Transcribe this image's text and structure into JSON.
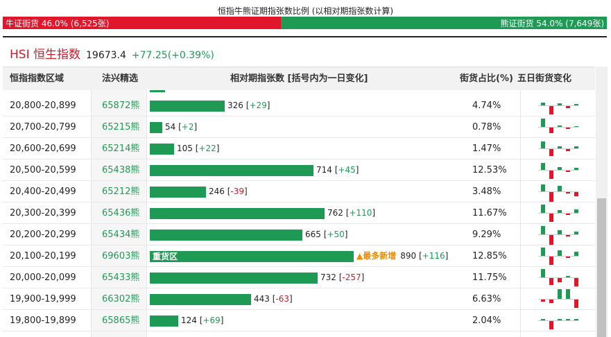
{
  "ratio": {
    "title": "恒指牛熊证期指张数比例 (以相对期指张数计算)",
    "bull_label": "牛证街货 46.0% (6,525张)",
    "bear_label": "熊证街货 54.0% (7,649张)",
    "bull_fraction": 0.46,
    "bull_color": "#e2162b",
    "bear_color": "#1f9a55"
  },
  "index": {
    "name": "HSI 恒生指数",
    "value": "19673.4",
    "change": "+77.25(+0.39%)"
  },
  "table": {
    "headers": {
      "range": "恒指指数区域",
      "warrant": "法兴精选",
      "distribution": "相对期指张数 [括号内为一日变化]",
      "pct": "街货占比(%)",
      "five_day": "五日街货变化"
    },
    "max_contracts": 890,
    "rows": [
      {
        "range": "20,800-20,899",
        "warrant": "65872熊",
        "contracts": 326,
        "count": "326",
        "change": "+29",
        "pct": "4.74%",
        "five": [
          4,
          -12,
          3,
          -3,
          2
        ]
      },
      {
        "range": "20,700-20,799",
        "warrant": "65215熊",
        "contracts": 54,
        "count": "54",
        "change": "+2",
        "pct": "0.78%",
        "five": [
          12,
          -8,
          2,
          -2,
          1
        ]
      },
      {
        "range": "20,600-20,699",
        "warrant": "65214熊",
        "contracts": 105,
        "count": "105",
        "change": "+22",
        "pct": "1.47%",
        "five": [
          10,
          -10,
          3,
          -3,
          3
        ]
      },
      {
        "range": "20,500-20,599",
        "warrant": "65438熊",
        "contracts": 714,
        "count": "714",
        "change": "+45",
        "pct": "12.53%",
        "five": [
          10,
          -12,
          4,
          -2,
          3
        ]
      },
      {
        "range": "20,400-20,499",
        "warrant": "65212熊",
        "contracts": 246,
        "count": "246",
        "change": "-39",
        "pct": "3.48%",
        "five": [
          10,
          -14,
          8,
          -2,
          -6
        ]
      },
      {
        "range": "20,300-20,399",
        "warrant": "65436熊",
        "contracts": 762,
        "count": "762",
        "change": "+110",
        "pct": "11.67%",
        "five": [
          12,
          -12,
          4,
          -2,
          5
        ]
      },
      {
        "range": "20,200-20,299",
        "warrant": "65434熊",
        "contracts": 665,
        "count": "665",
        "change": "+50",
        "pct": "9.29%",
        "five": [
          12,
          -14,
          6,
          -2,
          4
        ]
      },
      {
        "range": "20,100-20,199",
        "warrant": "69603熊",
        "contracts": 890,
        "count": "890",
        "change": "+116",
        "pct": "12.85%",
        "five": [
          12,
          -12,
          8,
          -2,
          6
        ],
        "zone": "重货区",
        "note": "▲最多新增"
      },
      {
        "range": "20,000-20,099",
        "warrant": "65433熊",
        "contracts": 732,
        "count": "732",
        "change": "-257",
        "pct": "11.75%",
        "five": [
          12,
          -10,
          -6,
          2,
          -12
        ]
      },
      {
        "range": "19,900-19,999",
        "warrant": "66302熊",
        "contracts": 443,
        "count": "443",
        "change": "-63",
        "pct": "6.63%",
        "five": [
          -3,
          -5,
          14,
          14,
          -12
        ]
      },
      {
        "range": "19,800-19,899",
        "warrant": "65865熊",
        "contracts": 124,
        "count": "124",
        "change": "+69",
        "pct": "2.04%",
        "five": [
          2,
          -12,
          2,
          2,
          2
        ]
      }
    ]
  }
}
